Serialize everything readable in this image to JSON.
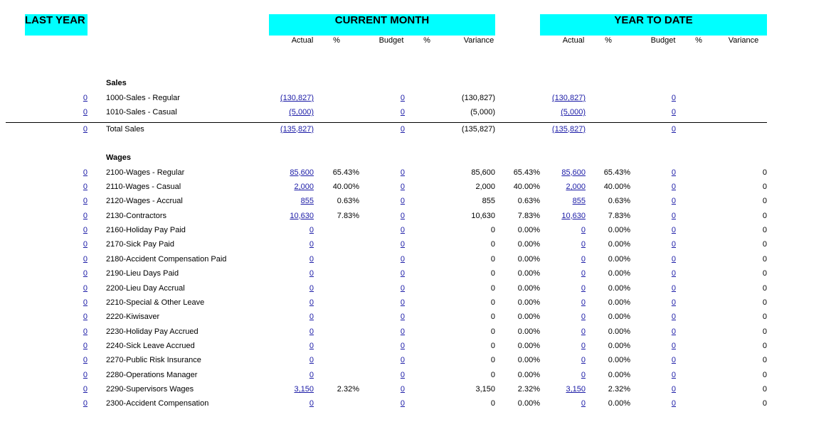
{
  "header": {
    "last_year": "LAST YEAR",
    "current_month": "CURRENT MONTH",
    "year_to_date": "YEAR TO DATE"
  },
  "column_headers": {
    "current_month": [
      "Actual",
      "%",
      "Budget",
      "%",
      "Variance"
    ],
    "year_to_date": [
      "Actual",
      "%",
      "Budget",
      "%",
      "Variance"
    ]
  },
  "sections": [
    {
      "title": "Sales",
      "rows": [
        [
          "0",
          "1000-Sales - Regular",
          "(130,827)",
          null,
          "0",
          null,
          "(130,827)",
          null,
          "(130,827)",
          null,
          "0",
          null,
          null
        ],
        [
          "0",
          "1010-Sales - Casual",
          "(5,000)",
          null,
          "0",
          null,
          "(5,000)",
          null,
          "(5,000)",
          null,
          "0",
          null,
          null
        ]
      ],
      "total": [
        "0",
        "Total Sales",
        "(135,827)",
        null,
        "0",
        null,
        "(135,827)",
        null,
        "(135,827)",
        null,
        "0",
        null,
        null
      ]
    },
    {
      "title": "Wages",
      "rows": [
        [
          "0",
          "2100-Wages - Regular",
          "85,600",
          "65.43%",
          "0",
          null,
          "85,600",
          "65.43%",
          "85,600",
          "65.43%",
          "0",
          null,
          "0"
        ],
        [
          "0",
          "2110-Wages - Casual",
          "2,000",
          "40.00%",
          "0",
          null,
          "2,000",
          "40.00%",
          "2,000",
          "40.00%",
          "0",
          null,
          "0"
        ],
        [
          "0",
          "2120-Wages - Accrual",
          "855",
          "0.63%",
          "0",
          null,
          "855",
          "0.63%",
          "855",
          "0.63%",
          "0",
          null,
          "0"
        ],
        [
          "0",
          "2130-Contractors",
          "10,630",
          "7.83%",
          "0",
          null,
          "10,630",
          "7.83%",
          "10,630",
          "7.83%",
          "0",
          null,
          "0"
        ],
        [
          "0",
          "2160-Holiday Pay Paid",
          "0",
          null,
          "0",
          null,
          "0",
          "0.00%",
          "0",
          "0.00%",
          "0",
          null,
          "0"
        ],
        [
          "0",
          "2170-Sick Pay Paid",
          "0",
          null,
          "0",
          null,
          "0",
          "0.00%",
          "0",
          "0.00%",
          "0",
          null,
          "0"
        ],
        [
          "0",
          "2180-Accident Compensation Paid",
          "0",
          null,
          "0",
          null,
          "0",
          "0.00%",
          "0",
          "0.00%",
          "0",
          null,
          "0"
        ],
        [
          "0",
          "2190-Lieu Days Paid",
          "0",
          null,
          "0",
          null,
          "0",
          "0.00%",
          "0",
          "0.00%",
          "0",
          null,
          "0"
        ],
        [
          "0",
          "2200-Lieu Day Accrual",
          "0",
          null,
          "0",
          null,
          "0",
          "0.00%",
          "0",
          "0.00%",
          "0",
          null,
          "0"
        ],
        [
          "0",
          "2210-Special & Other Leave",
          "0",
          null,
          "0",
          null,
          "0",
          "0.00%",
          "0",
          "0.00%",
          "0",
          null,
          "0"
        ],
        [
          "0",
          "2220-Kiwisaver",
          "0",
          null,
          "0",
          null,
          "0",
          "0.00%",
          "0",
          "0.00%",
          "0",
          null,
          "0"
        ],
        [
          "0",
          "2230-Holiday Pay Accrued",
          "0",
          null,
          "0",
          null,
          "0",
          "0.00%",
          "0",
          "0.00%",
          "0",
          null,
          "0"
        ],
        [
          "0",
          "2240-Sick Leave Accrued",
          "0",
          null,
          "0",
          null,
          "0",
          "0.00%",
          "0",
          "0.00%",
          "0",
          null,
          "0"
        ],
        [
          "0",
          "2270-Public Risk Insurance",
          "0",
          null,
          "0",
          null,
          "0",
          "0.00%",
          "0",
          "0.00%",
          "0",
          null,
          "0"
        ],
        [
          "0",
          "2280-Operations Manager",
          "0",
          null,
          "0",
          null,
          "0",
          "0.00%",
          "0",
          "0.00%",
          "0",
          null,
          "0"
        ],
        [
          "0",
          "2290-Supervisors Wages",
          "3,150",
          "2.32%",
          "0",
          null,
          "3,150",
          "2.32%",
          "3,150",
          "2.32%",
          "0",
          null,
          "0"
        ],
        [
          "0",
          "2300-Accident Compensation",
          "0",
          null,
          "0",
          null,
          "0",
          "0.00%",
          "0",
          "0.00%",
          "0",
          null,
          "0"
        ]
      ]
    }
  ]
}
